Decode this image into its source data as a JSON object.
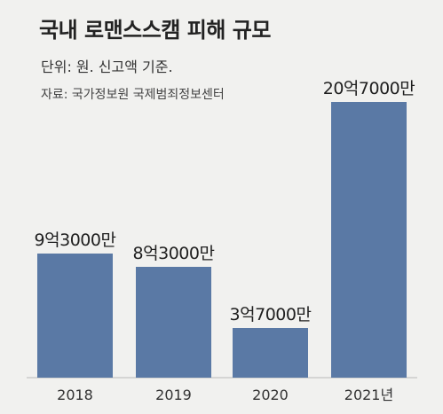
{
  "header": {
    "title": "국내 로맨스스캠 피해 규모",
    "subtitle": "단위: 원. 신고액 기준.",
    "source": "자료: 국가정보원 국제범죄정보센터"
  },
  "colors": {
    "bar": "#5a79a5",
    "background": "#f1f1ef"
  },
  "chart_data": {
    "type": "bar",
    "title": "국내 로맨스스캠 피해 규모",
    "subtitle": "단위: 원. 신고액 기준.",
    "categories": [
      "2018",
      "2019",
      "2020",
      "2021년"
    ],
    "values": [
      930000000,
      830000000,
      370000000,
      2070000000
    ],
    "value_labels": [
      "9억3000만",
      "8억3000만",
      "3억7000만",
      "20억7000만"
    ],
    "xlabel": "",
    "ylabel": "",
    "ylim": [
      0,
      2070000000
    ],
    "grid": false,
    "legend": "none"
  }
}
